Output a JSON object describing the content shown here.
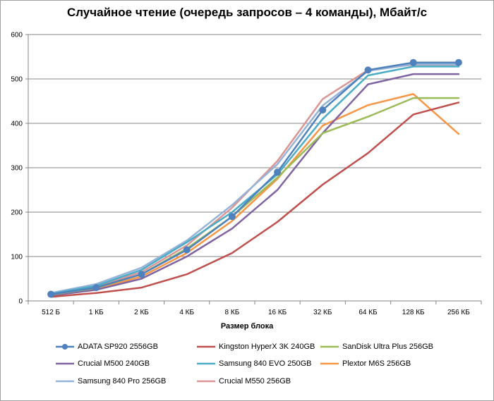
{
  "chart_data": {
    "type": "line",
    "title": "Случайное чтение (очередь запросов – 4 команды), Мбайт/с",
    "xlabel": "Размер блока",
    "ylabel": "",
    "categories": [
      "512 Б",
      "1 КБ",
      "2 КБ",
      "4 КБ",
      "8 КБ",
      "16 КБ",
      "32 КБ",
      "64 КБ",
      "128 КБ",
      "256 КБ"
    ],
    "ylim": [
      0,
      600
    ],
    "yticks": [
      0,
      100,
      200,
      300,
      400,
      500,
      600
    ],
    "grid": "horizontal",
    "legend_position": "bottom",
    "series": [
      {
        "name": "ADATA SP920 2556GB",
        "color": "#4f81bd",
        "markers": true,
        "values": [
          15,
          30,
          60,
          115,
          190,
          290,
          430,
          520,
          537,
          537
        ]
      },
      {
        "name": "Kingston HyperX 3K 240GB",
        "color": "#c0504d",
        "markers": false,
        "values": [
          9,
          18,
          30,
          60,
          108,
          178,
          262,
          333,
          420,
          447
        ]
      },
      {
        "name": "SanDisk Ultra Plus 256GB",
        "color": "#9bbb59",
        "markers": false,
        "values": [
          14,
          29,
          60,
          118,
          190,
          278,
          378,
          415,
          457,
          457
        ]
      },
      {
        "name": "Crucial M500 240GB",
        "color": "#8064a2",
        "markers": false,
        "values": [
          12,
          25,
          50,
          100,
          163,
          250,
          378,
          488,
          511,
          511
        ]
      },
      {
        "name": "Samsung 840 EVO 250GB",
        "color": "#4bacc6",
        "markers": false,
        "values": [
          16,
          34,
          70,
          132,
          200,
          285,
          410,
          508,
          528,
          528
        ]
      },
      {
        "name": "Plextor M6S 256GB",
        "color": "#f79646",
        "markers": false,
        "values": [
          13,
          27,
          55,
          108,
          180,
          275,
          395,
          441,
          466,
          376
        ]
      },
      {
        "name": "Samsung 840 Pro 256GB",
        "color": "#95b3d7",
        "markers": false,
        "values": [
          18,
          38,
          75,
          136,
          216,
          308,
          440,
          518,
          533,
          533
        ]
      },
      {
        "name": "Crucial M550 256GB",
        "color": "#d99694",
        "markers": false,
        "values": [
          15,
          32,
          65,
          125,
          210,
          315,
          455,
          520,
          532,
          532
        ]
      }
    ]
  }
}
